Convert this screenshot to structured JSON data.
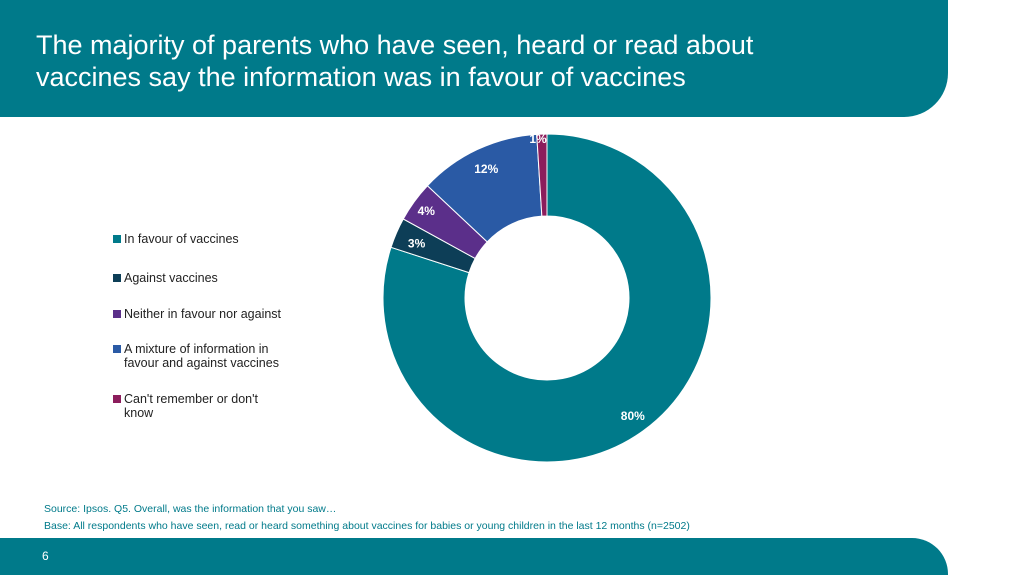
{
  "slide": {
    "title": "The majority of parents who have seen, heard or read about\nvaccines say the information was in favour of vaccines",
    "source": "Source: Ipsos. Q5. Overall, was the information that you saw…",
    "base": "Base: All respondents who have seen, read or heard something about vaccines for babies or young children in the last 12 months (n=2502)",
    "page_number": "6"
  },
  "colors": {
    "brand": "#007a8a",
    "text": "#222222"
  },
  "chart_data": {
    "type": "pie",
    "style": "donut",
    "legend_position": "left",
    "categories": [
      "In favour of vaccines",
      "Against vaccines",
      "Neither in favour nor against",
      "A mixture of information in\nfavour and against vaccines",
      "Can't remember or don't\nknow"
    ],
    "values": [
      80,
      3,
      4,
      12,
      1
    ],
    "value_labels": [
      "80%",
      "3%",
      "4%",
      "12%",
      "1%"
    ],
    "colors": [
      "#007a8a",
      "#0d3e57",
      "#5b2f8a",
      "#2a5aa5",
      "#8c1d5c"
    ]
  }
}
